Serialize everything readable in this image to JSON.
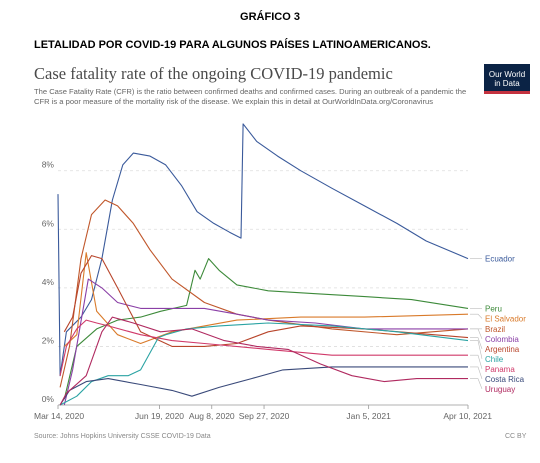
{
  "page": {
    "figure_label": "GRÁFICO 3",
    "figure_title": "LETALIDAD POR COVID-19 PARA ALGUNOS PAÍSES LATINOAMERICANOS."
  },
  "header": {
    "title": "Case fatality rate of the ongoing COVID-19 pandemic",
    "subtitle": "The Case Fatality Rate (CFR) is the ratio between confirmed deaths and confirmed cases. During an outbreak of a pandemic the CFR is a poor measure of the mortality risk of the disease. We explain this in detail at OurWorldInData.org/Coronavirus",
    "logo_line1": "Our World",
    "logo_line2": "in Data"
  },
  "footer": {
    "source": "Source: Johns Hopkins University CSSE COVID-19 Data",
    "license": "CC BY"
  },
  "chart_data": {
    "type": "line",
    "title": "Case fatality rate of the ongoing COVID-19 pandemic",
    "y_ticks": [
      "0%",
      "2%",
      "4%",
      "6%",
      "8%"
    ],
    "y_tick_values": [
      0,
      2,
      4,
      6,
      8
    ],
    "ylim": [
      0,
      9.8
    ],
    "xlim": [
      "2020-03-14",
      "2021-04-10"
    ],
    "x_ticks": [
      {
        "label": "Mar 14, 2020",
        "date": "2020-03-14"
      },
      {
        "label": "Jun 19, 2020",
        "date": "2020-06-19"
      },
      {
        "label": "Aug 8, 2020",
        "date": "2020-08-08"
      },
      {
        "label": "Sep 27, 2020",
        "date": "2020-09-27"
      },
      {
        "label": "Jan 5, 2021",
        "date": "2021-01-05"
      },
      {
        "label": "Apr 10, 2021",
        "date": "2021-04-10"
      }
    ],
    "grid": true,
    "legend": "right",
    "series": [
      {
        "name": "Ecuador",
        "color": "#3a5a9b",
        "points": [
          [
            "2020-03-14",
            7.2
          ],
          [
            "2020-03-16",
            1.0
          ],
          [
            "2020-03-22",
            2.5
          ],
          [
            "2020-04-05",
            3.0
          ],
          [
            "2020-04-15",
            3.6
          ],
          [
            "2020-04-25",
            5.0
          ],
          [
            "2020-05-05",
            7.0
          ],
          [
            "2020-05-15",
            8.2
          ],
          [
            "2020-05-25",
            8.6
          ],
          [
            "2020-06-10",
            8.5
          ],
          [
            "2020-06-25",
            8.2
          ],
          [
            "2020-07-10",
            7.5
          ],
          [
            "2020-07-25",
            6.6
          ],
          [
            "2020-08-10",
            6.2
          ],
          [
            "2020-08-25",
            5.9
          ],
          [
            "2020-09-05",
            5.7
          ],
          [
            "2020-09-07",
            9.6
          ],
          [
            "2020-09-20",
            9.0
          ],
          [
            "2020-10-10",
            8.5
          ],
          [
            "2020-11-01",
            8.0
          ],
          [
            "2020-12-01",
            7.4
          ],
          [
            "2021-01-01",
            6.8
          ],
          [
            "2021-02-01",
            6.2
          ],
          [
            "2021-03-01",
            5.6
          ],
          [
            "2021-04-10",
            5.0
          ]
        ]
      },
      {
        "name": "Peru",
        "color": "#3d8a3a",
        "points": [
          [
            "2020-03-20",
            0.2
          ],
          [
            "2020-04-01",
            2.0
          ],
          [
            "2020-04-20",
            2.6
          ],
          [
            "2020-05-10",
            2.9
          ],
          [
            "2020-06-01",
            3.0
          ],
          [
            "2020-06-20",
            3.2
          ],
          [
            "2020-07-15",
            3.4
          ],
          [
            "2020-07-23",
            4.6
          ],
          [
            "2020-07-28",
            4.3
          ],
          [
            "2020-08-05",
            5.0
          ],
          [
            "2020-08-15",
            4.6
          ],
          [
            "2020-09-01",
            4.1
          ],
          [
            "2020-10-01",
            3.9
          ],
          [
            "2020-11-15",
            3.8
          ],
          [
            "2021-01-01",
            3.7
          ],
          [
            "2021-02-15",
            3.6
          ],
          [
            "2021-04-10",
            3.3
          ]
        ]
      },
      {
        "name": "El Salvador",
        "color": "#d97a2a",
        "points": [
          [
            "2020-03-20",
            2.0
          ],
          [
            "2020-04-01",
            2.4
          ],
          [
            "2020-04-10",
            5.2
          ],
          [
            "2020-04-20",
            3.2
          ],
          [
            "2020-05-10",
            2.4
          ],
          [
            "2020-06-01",
            2.1
          ],
          [
            "2020-07-01",
            2.5
          ],
          [
            "2020-08-01",
            2.7
          ],
          [
            "2020-09-01",
            2.9
          ],
          [
            "2020-11-01",
            3.0
          ],
          [
            "2021-01-01",
            3.0
          ],
          [
            "2021-04-10",
            3.1
          ]
        ]
      },
      {
        "name": "Brazil",
        "color": "#c0572b",
        "points": [
          [
            "2020-03-16",
            0.6
          ],
          [
            "2020-03-25",
            2.0
          ],
          [
            "2020-04-05",
            5.0
          ],
          [
            "2020-04-15",
            6.5
          ],
          [
            "2020-04-28",
            7.0
          ],
          [
            "2020-05-10",
            6.8
          ],
          [
            "2020-05-25",
            6.2
          ],
          [
            "2020-06-10",
            5.3
          ],
          [
            "2020-07-01",
            4.3
          ],
          [
            "2020-08-01",
            3.5
          ],
          [
            "2020-09-01",
            3.1
          ],
          [
            "2020-10-01",
            2.9
          ],
          [
            "2020-12-01",
            2.6
          ],
          [
            "2021-02-01",
            2.4
          ],
          [
            "2021-04-10",
            2.6
          ]
        ]
      },
      {
        "name": "Colombia",
        "color": "#8a3fa6",
        "points": [
          [
            "2020-03-20",
            0.0
          ],
          [
            "2020-03-28",
            1.2
          ],
          [
            "2020-04-12",
            4.3
          ],
          [
            "2020-04-25",
            4.0
          ],
          [
            "2020-05-10",
            3.5
          ],
          [
            "2020-06-01",
            3.3
          ],
          [
            "2020-07-01",
            3.3
          ],
          [
            "2020-08-01",
            3.3
          ],
          [
            "2020-09-01",
            3.1
          ],
          [
            "2020-10-01",
            2.9
          ],
          [
            "2020-11-15",
            2.8
          ],
          [
            "2021-01-01",
            2.6
          ],
          [
            "2021-02-15",
            2.6
          ],
          [
            "2021-04-10",
            2.6
          ]
        ]
      },
      {
        "name": "Argentina",
        "color": "#b8452b",
        "points": [
          [
            "2020-03-20",
            2.5
          ],
          [
            "2020-03-28",
            3.0
          ],
          [
            "2020-04-05",
            4.5
          ],
          [
            "2020-04-15",
            5.1
          ],
          [
            "2020-04-25",
            5.0
          ],
          [
            "2020-05-10",
            4.0
          ],
          [
            "2020-06-01",
            2.5
          ],
          [
            "2020-07-01",
            2.0
          ],
          [
            "2020-08-01",
            2.0
          ],
          [
            "2020-09-01",
            2.1
          ],
          [
            "2020-10-01",
            2.5
          ],
          [
            "2020-11-01",
            2.7
          ],
          [
            "2021-01-01",
            2.6
          ],
          [
            "2021-04-10",
            2.3
          ]
        ]
      },
      {
        "name": "Chile",
        "color": "#2aa3a3",
        "points": [
          [
            "2020-03-16",
            0.0
          ],
          [
            "2020-04-01",
            0.3
          ],
          [
            "2020-04-15",
            0.8
          ],
          [
            "2020-05-01",
            1.0
          ],
          [
            "2020-05-20",
            1.0
          ],
          [
            "2020-06-01",
            1.2
          ],
          [
            "2020-06-18",
            2.3
          ],
          [
            "2020-06-25",
            2.4
          ],
          [
            "2020-07-15",
            2.6
          ],
          [
            "2020-08-15",
            2.7
          ],
          [
            "2020-10-01",
            2.8
          ],
          [
            "2020-12-01",
            2.7
          ],
          [
            "2021-02-01",
            2.5
          ],
          [
            "2021-04-10",
            2.2
          ]
        ]
      },
      {
        "name": "Panama",
        "color": "#d03a6a",
        "points": [
          [
            "2020-03-16",
            1.0
          ],
          [
            "2020-03-22",
            2.0
          ],
          [
            "2020-04-01",
            2.6
          ],
          [
            "2020-04-10",
            2.9
          ],
          [
            "2020-04-20",
            2.8
          ],
          [
            "2020-05-01",
            2.7
          ],
          [
            "2020-06-01",
            2.4
          ],
          [
            "2020-07-01",
            2.2
          ],
          [
            "2020-08-01",
            2.1
          ],
          [
            "2020-10-01",
            1.9
          ],
          [
            "2020-12-01",
            1.7
          ],
          [
            "2021-02-01",
            1.7
          ],
          [
            "2021-04-10",
            1.7
          ]
        ]
      },
      {
        "name": "Costa Rica",
        "color": "#3a4a7a",
        "points": [
          [
            "2020-03-16",
            0.0
          ],
          [
            "2020-03-25",
            0.5
          ],
          [
            "2020-04-10",
            0.8
          ],
          [
            "2020-05-01",
            0.9
          ],
          [
            "2020-06-01",
            0.7
          ],
          [
            "2020-07-01",
            0.5
          ],
          [
            "2020-07-20",
            0.3
          ],
          [
            "2020-08-15",
            0.6
          ],
          [
            "2020-09-15",
            0.9
          ],
          [
            "2020-10-15",
            1.2
          ],
          [
            "2020-12-01",
            1.3
          ],
          [
            "2021-02-01",
            1.3
          ],
          [
            "2021-04-10",
            1.3
          ]
        ]
      },
      {
        "name": "Uruguay",
        "color": "#b02a60",
        "points": [
          [
            "2020-03-16",
            0.0
          ],
          [
            "2020-03-22",
            0.4
          ],
          [
            "2020-04-10",
            1.0
          ],
          [
            "2020-04-25",
            2.5
          ],
          [
            "2020-05-05",
            3.0
          ],
          [
            "2020-05-25",
            2.8
          ],
          [
            "2020-06-20",
            2.5
          ],
          [
            "2020-07-20",
            2.6
          ],
          [
            "2020-08-20",
            2.2
          ],
          [
            "2020-09-20",
            2.0
          ],
          [
            "2020-10-20",
            1.9
          ],
          [
            "2020-11-20",
            1.4
          ],
          [
            "2020-12-20",
            1.0
          ],
          [
            "2021-01-20",
            0.8
          ],
          [
            "2021-02-20",
            0.9
          ],
          [
            "2021-04-10",
            0.9
          ]
        ]
      }
    ]
  }
}
